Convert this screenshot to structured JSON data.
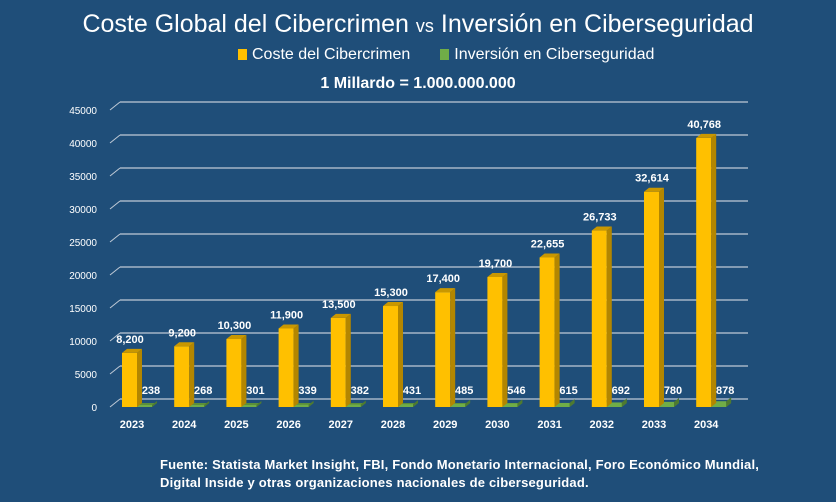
{
  "chart_data": {
    "type": "bar",
    "title_part1": "Coste Global del Cibercrimen",
    "title_vs": "vs",
    "title_part2": "Inversión en  Ciberseguridad",
    "subtitle": "1 Millardo = 1.000.000.000",
    "categories": [
      "2023",
      "2024",
      "2025",
      "2026",
      "2027",
      "2028",
      "2029",
      "2030",
      "2031",
      "2032",
      "2033",
      "2034"
    ],
    "series": [
      {
        "name": "Coste del Cibercrimen",
        "color": "#FFC000",
        "values": [
          8200,
          9200,
          10300,
          11900,
          13500,
          15300,
          17400,
          19700,
          22655,
          26733,
          32614,
          40768
        ],
        "labels": [
          "8,200",
          "9,200",
          "10,300",
          "11,900",
          "13,500",
          "15,300",
          "17,400",
          "19,700",
          "22,655",
          "26,733",
          "32,614",
          "40,768"
        ]
      },
      {
        "name": "Inversión en Ciberseguridad",
        "color": "#70AD47",
        "values": [
          238,
          268,
          301,
          339,
          382,
          431,
          485,
          546,
          615,
          692,
          780,
          878
        ],
        "labels": [
          "238",
          "268",
          "301",
          "339",
          "382",
          "431",
          "485",
          "546",
          "615",
          "692",
          "780",
          "878"
        ]
      }
    ],
    "ylim": [
      0,
      45000
    ],
    "yticks": [
      "0",
      "5000",
      "10000",
      "15000",
      "20000",
      "25000",
      "30000",
      "35000",
      "40000",
      "45000"
    ],
    "grid": true,
    "legend": "top",
    "three_d": true
  },
  "footer": {
    "line1": "Fuente: Statista Market Insight, FBI, Fondo Monetario Internacional, Foro Económico Mundial,",
    "line2": "Digital Inside y otras organizaciones nacionales de ciberseguridad."
  }
}
